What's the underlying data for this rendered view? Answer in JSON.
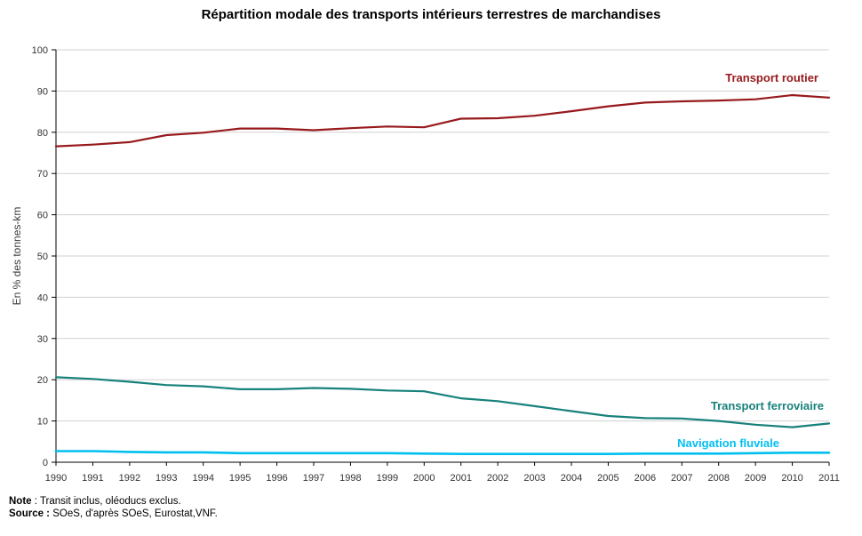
{
  "title": "Répartition modale des transports intérieurs terrestres de marchandises",
  "ylabel": "En % des tonnes-km",
  "notes": {
    "note_label": "Note",
    "note_text": " : Transit inclus, oléoducs exclus.",
    "source_label": "Source :",
    "source_text": " SOeS, d'après SOeS, Eurostat,VNF."
  },
  "chart_data": {
    "type": "line",
    "title": "Répartition modale des transports intérieurs terrestres de marchandises",
    "xlabel": "",
    "ylabel": "En % des tonnes-km",
    "ylim": [
      0,
      100
    ],
    "ytick_step": 10,
    "grid": true,
    "legend_position": "inline-labels-right",
    "colors": {
      "grid": "#d0d0d0",
      "axis": "#000000"
    },
    "x": [
      1990,
      1991,
      1992,
      1993,
      1994,
      1995,
      1996,
      1997,
      1998,
      1999,
      2000,
      2001,
      2002,
      2003,
      2004,
      2005,
      2006,
      2007,
      2008,
      2009,
      2010,
      2011
    ],
    "series": [
      {
        "name": "Transport routier",
        "color": "#97191c",
        "line_width": 2.2,
        "values": [
          76.6,
          77.0,
          77.6,
          79.3,
          79.9,
          80.9,
          80.9,
          80.5,
          81.0,
          81.4,
          81.2,
          83.3,
          83.4,
          84.0,
          85.1,
          86.3,
          87.2,
          87.5,
          87.7,
          88.0,
          89.0,
          88.4
        ]
      },
      {
        "name": "Transport ferroviaire",
        "color": "#17817b",
        "line_width": 2.2,
        "values": [
          20.6,
          20.2,
          19.5,
          18.7,
          18.4,
          17.7,
          17.7,
          18.0,
          17.8,
          17.4,
          17.2,
          15.5,
          14.8,
          13.6,
          12.4,
          11.2,
          10.7,
          10.6,
          10.0,
          9.1,
          8.5,
          9.4
        ]
      },
      {
        "name": "Navigation fluviale",
        "color": "#00bff0",
        "line_width": 2.6,
        "values": [
          2.7,
          2.7,
          2.5,
          2.4,
          2.4,
          2.2,
          2.2,
          2.2,
          2.2,
          2.2,
          2.1,
          2.0,
          2.0,
          2.0,
          2.0,
          2.0,
          2.1,
          2.1,
          2.1,
          2.2,
          2.3,
          2.3
        ]
      }
    ]
  }
}
